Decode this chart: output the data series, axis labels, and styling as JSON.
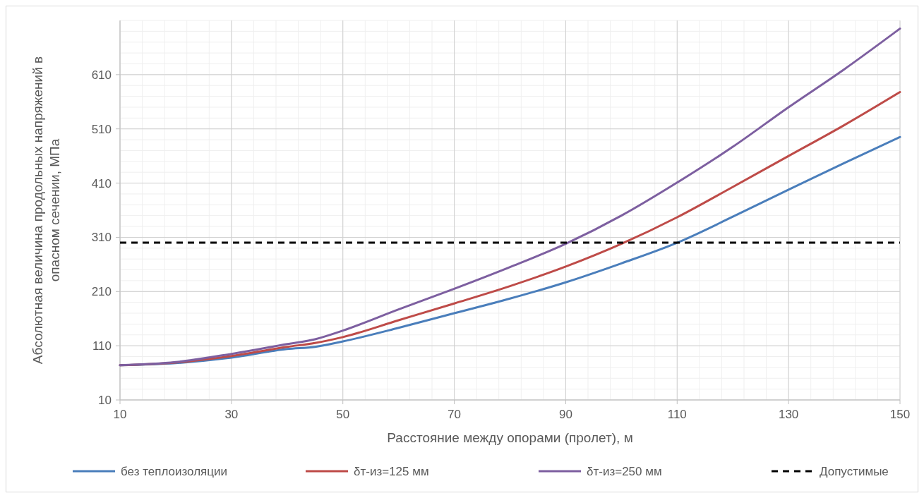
{
  "chart_data": {
    "type": "line",
    "xlabel": "Расстояние между опорами (пролет), м",
    "ylabel": "Абсолютная величина продольных напряжений в опасном сечении, МПа",
    "x": [
      10,
      20,
      30,
      40,
      45,
      50,
      60,
      70,
      80,
      90,
      100,
      110,
      120,
      130,
      140,
      150
    ],
    "series": [
      {
        "name": "без теплоизоляции",
        "color": "#4a7ebb",
        "values": [
          74,
          78,
          88,
          104,
          108,
          118,
          143,
          170,
          197,
          227,
          262,
          300,
          348,
          398,
          447,
          495
        ]
      },
      {
        "name": "δт-из=125 мм",
        "color": "#be4b48",
        "values": [
          74,
          79,
          91,
          108,
          115,
          126,
          157,
          188,
          220,
          256,
          298,
          347,
          403,
          460,
          517,
          578
        ]
      },
      {
        "name": "δт-из=250 мм",
        "color": "#7d5fa0",
        "values": [
          74,
          80,
          95,
          113,
          122,
          138,
          177,
          215,
          255,
          298,
          350,
          411,
          477,
          550,
          620,
          695
        ]
      }
    ],
    "ref_lines": [
      {
        "axis": "y",
        "value": 300,
        "label": "Допустимые",
        "color": "#000000",
        "line_style": "dashed"
      }
    ],
    "xlim": [
      10,
      150
    ],
    "xticks": [
      10,
      30,
      50,
      70,
      90,
      110,
      130,
      150
    ],
    "ylim": [
      10,
      710
    ],
    "yticks": [
      10,
      110,
      210,
      310,
      410,
      510,
      610
    ],
    "grid": true,
    "legend": "bottom",
    "line_style": "solid",
    "marker": "none"
  }
}
